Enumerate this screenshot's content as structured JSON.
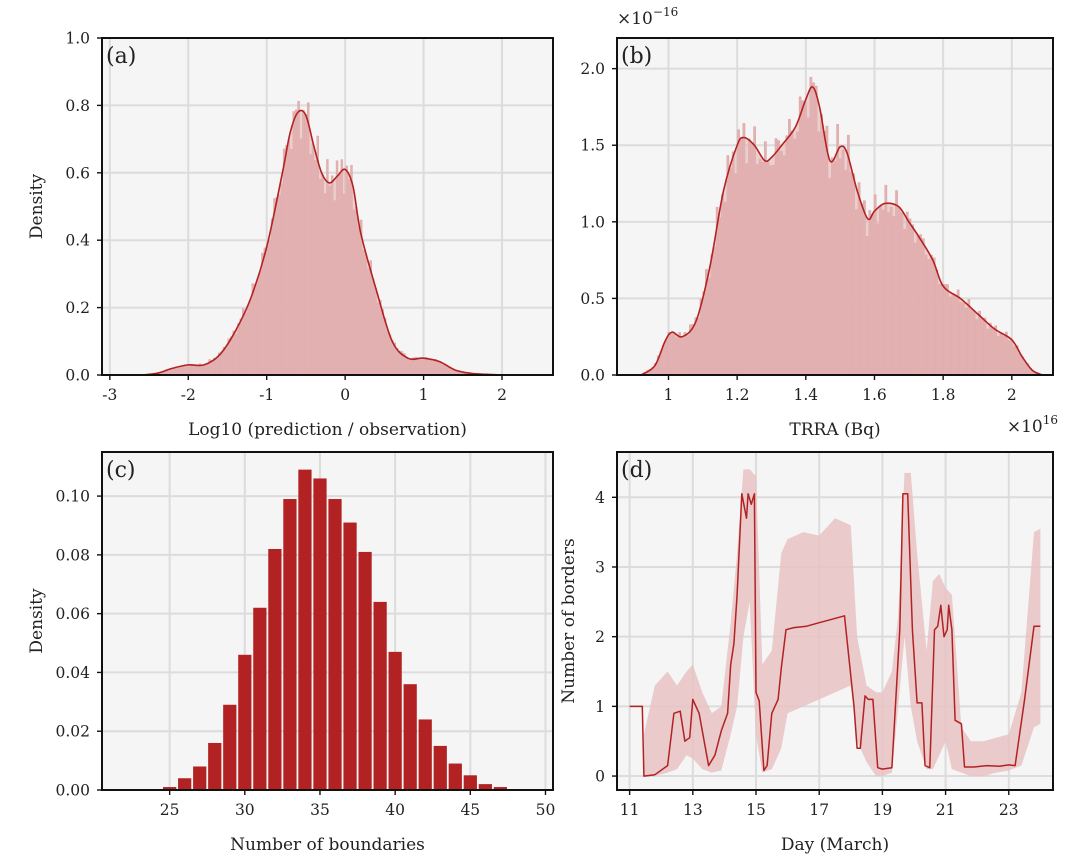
{
  "colors": {
    "main": "#b22222",
    "fill": "#e3b1b1",
    "band": "#e8c2c2",
    "panel_bg": "#f5f5f5",
    "grid": "#dcdcdc",
    "frame": "#111111"
  },
  "chart_data": [
    {
      "panel": "(a)",
      "type": "area",
      "xlabel": "Log10 (prediction / observation)",
      "ylabel": "Density",
      "xlim": [
        -3.1,
        2.65
      ],
      "ylim": [
        0,
        1.0
      ],
      "xticks": [
        -3,
        -2,
        -1,
        0,
        1,
        2
      ],
      "yticks": [
        0.0,
        0.2,
        0.4,
        0.6,
        0.8,
        1.0
      ],
      "ytick_labels": [
        "0.0",
        "0.2",
        "0.4",
        "0.6",
        "0.8",
        "1.0"
      ],
      "grid": true,
      "series": [
        {
          "kind": "histogram+kde",
          "x": [
            -2.6,
            -2.4,
            -2.2,
            -2.0,
            -1.8,
            -1.6,
            -1.4,
            -1.2,
            -1.0,
            -0.8,
            -0.7,
            -0.6,
            -0.5,
            -0.4,
            -0.3,
            -0.2,
            -0.1,
            0.0,
            0.1,
            0.2,
            0.4,
            0.6,
            0.8,
            1.0,
            1.2,
            1.4,
            1.6,
            1.8,
            2.0
          ],
          "y": [
            0.0,
            0.005,
            0.02,
            0.03,
            0.03,
            0.06,
            0.13,
            0.23,
            0.38,
            0.6,
            0.72,
            0.78,
            0.77,
            0.68,
            0.6,
            0.57,
            0.59,
            0.61,
            0.56,
            0.42,
            0.25,
            0.1,
            0.05,
            0.05,
            0.04,
            0.015,
            0.005,
            0.002,
            0.0
          ]
        }
      ]
    },
    {
      "panel": "(b)",
      "type": "area",
      "xlabel": "TRRA (Bq)",
      "ylabel": "",
      "x_scale_label": "×10^16",
      "y_scale_label": "×10^−16",
      "xlim": [
        0.85,
        2.12
      ],
      "ylim": [
        0,
        2.2
      ],
      "xticks": [
        1.0,
        1.2,
        1.4,
        1.6,
        1.8,
        2.0
      ],
      "yticks": [
        0.0,
        0.5,
        1.0,
        1.5,
        2.0
      ],
      "ytick_labels": [
        "0.0",
        "0.5",
        "1.0",
        "1.5",
        "2.0"
      ],
      "grid": true,
      "series": [
        {
          "kind": "histogram+kde",
          "x": [
            0.92,
            0.96,
            0.99,
            1.01,
            1.04,
            1.08,
            1.12,
            1.16,
            1.2,
            1.22,
            1.25,
            1.28,
            1.3,
            1.33,
            1.37,
            1.4,
            1.42,
            1.44,
            1.47,
            1.5,
            1.52,
            1.55,
            1.58,
            1.6,
            1.63,
            1.67,
            1.7,
            1.73,
            1.77,
            1.8,
            1.85,
            1.9,
            1.95,
            2.0,
            2.03,
            2.06,
            2.09
          ],
          "y": [
            0.0,
            0.06,
            0.22,
            0.28,
            0.25,
            0.35,
            0.7,
            1.2,
            1.5,
            1.55,
            1.5,
            1.4,
            1.42,
            1.5,
            1.62,
            1.8,
            1.88,
            1.75,
            1.4,
            1.49,
            1.45,
            1.2,
            1.02,
            1.07,
            1.12,
            1.1,
            1.0,
            0.9,
            0.75,
            0.58,
            0.5,
            0.4,
            0.3,
            0.23,
            0.12,
            0.03,
            0.0
          ]
        }
      ]
    },
    {
      "panel": "(c)",
      "type": "bar",
      "xlabel": "Number of boundaries",
      "ylabel": "Density",
      "xlim": [
        20.5,
        50.5
      ],
      "ylim": [
        0,
        0.115
      ],
      "xticks": [
        25,
        30,
        35,
        40,
        45,
        50
      ],
      "yticks": [
        0.0,
        0.02,
        0.04,
        0.06,
        0.08,
        0.1
      ],
      "ytick_labels": [
        "0.00",
        "0.02",
        "0.04",
        "0.06",
        "0.08",
        "0.10"
      ],
      "grid": true,
      "categories": [
        25,
        26,
        27,
        28,
        29,
        30,
        31,
        32,
        33,
        34,
        35,
        36,
        37,
        38,
        39,
        40,
        41,
        42,
        43,
        44,
        45,
        46,
        47
      ],
      "values": [
        0.001,
        0.004,
        0.008,
        0.016,
        0.029,
        0.046,
        0.062,
        0.082,
        0.099,
        0.109,
        0.106,
        0.099,
        0.091,
        0.081,
        0.064,
        0.047,
        0.036,
        0.024,
        0.015,
        0.009,
        0.005,
        0.002,
        0.001
      ]
    },
    {
      "panel": "(d)",
      "type": "line",
      "xlabel": "Day (March)",
      "ylabel": "Number of borders",
      "xlim": [
        10.6,
        24.4
      ],
      "ylim": [
        -0.2,
        4.65
      ],
      "xticks": [
        11,
        13,
        15,
        17,
        19,
        21,
        23
      ],
      "yticks": [
        0,
        1,
        2,
        3,
        4
      ],
      "ytick_labels": [
        "0",
        "1",
        "2",
        "3",
        "4"
      ],
      "grid": true,
      "series": [
        {
          "kind": "median-line",
          "x": [
            11.0,
            11.4,
            11.45,
            11.8,
            12.2,
            12.4,
            12.6,
            12.75,
            12.9,
            13.0,
            13.2,
            13.5,
            13.7,
            13.9,
            14.1,
            14.2,
            14.3,
            14.4,
            14.55,
            14.7,
            14.75,
            14.85,
            14.95,
            15.0,
            15.1,
            15.25,
            15.35,
            15.5,
            15.7,
            15.8,
            15.95,
            16.2,
            16.6,
            17.0,
            17.4,
            17.8,
            18.1,
            18.2,
            18.3,
            18.45,
            18.55,
            18.7,
            18.85,
            19.0,
            19.3,
            19.55,
            19.65,
            19.8,
            19.95,
            20.1,
            20.25,
            20.35,
            20.5,
            20.65,
            20.75,
            20.85,
            20.95,
            21.05,
            21.1,
            21.2,
            21.3,
            21.5,
            21.6,
            21.9,
            22.3,
            22.7,
            23.0,
            23.2,
            23.5,
            23.8,
            24.0
          ],
          "y": [
            1.0,
            1.0,
            0.0,
            0.02,
            0.15,
            0.9,
            0.93,
            0.5,
            0.55,
            1.1,
            0.9,
            0.15,
            0.3,
            0.65,
            0.9,
            1.6,
            1.9,
            2.6,
            4.05,
            3.7,
            4.05,
            3.9,
            4.05,
            1.2,
            1.08,
            0.08,
            0.15,
            0.9,
            1.1,
            1.55,
            2.1,
            2.13,
            2.15,
            2.2,
            2.25,
            2.3,
            1.0,
            0.4,
            0.4,
            1.15,
            1.1,
            1.1,
            0.12,
            0.1,
            0.12,
            2.1,
            4.05,
            4.05,
            2.1,
            1.05,
            1.05,
            0.15,
            0.12,
            2.1,
            2.15,
            2.45,
            2.0,
            2.1,
            2.45,
            2.1,
            0.8,
            0.75,
            0.13,
            0.13,
            0.15,
            0.14,
            0.16,
            0.15,
            1.1,
            2.15,
            2.15
          ]
        },
        {
          "kind": "uncertainty-band",
          "x": [
            11.45,
            11.8,
            12.2,
            12.5,
            12.8,
            13.0,
            13.3,
            13.6,
            13.9,
            14.2,
            14.4,
            14.6,
            14.8,
            15.0,
            15.2,
            15.5,
            15.8,
            16.0,
            16.5,
            17.0,
            17.5,
            18.0,
            18.2,
            18.5,
            18.8,
            19.0,
            19.3,
            19.5,
            19.7,
            19.9,
            20.1,
            20.4,
            20.6,
            20.8,
            21.0,
            21.2,
            21.5,
            21.8,
            22.2,
            22.6,
            23.0,
            23.4,
            23.8,
            24.0
          ],
          "y_low": [
            0.0,
            0.0,
            0.05,
            0.1,
            0.3,
            0.25,
            0.1,
            0.05,
            0.08,
            0.6,
            1.0,
            2.0,
            2.5,
            0.6,
            0.05,
            0.1,
            0.4,
            0.9,
            1.0,
            1.1,
            1.2,
            1.3,
            0.5,
            0.2,
            0.0,
            0.0,
            0.05,
            1.0,
            2.0,
            1.0,
            0.5,
            0.1,
            0.1,
            0.3,
            0.5,
            0.1,
            0.05,
            0.0,
            0.0,
            0.05,
            0.08,
            0.15,
            0.7,
            0.75
          ],
          "y_high": [
            0.6,
            1.3,
            1.5,
            1.3,
            1.5,
            1.6,
            1.2,
            0.9,
            1.0,
            2.2,
            3.2,
            4.4,
            4.4,
            4.3,
            1.6,
            1.8,
            3.2,
            3.4,
            3.5,
            3.45,
            3.7,
            3.6,
            2.0,
            1.3,
            1.2,
            1.2,
            1.5,
            2.3,
            4.35,
            4.35,
            3.2,
            1.8,
            2.8,
            2.9,
            2.7,
            2.6,
            0.7,
            0.5,
            0.5,
            0.55,
            0.6,
            1.2,
            3.5,
            3.55
          ]
        }
      ]
    }
  ]
}
